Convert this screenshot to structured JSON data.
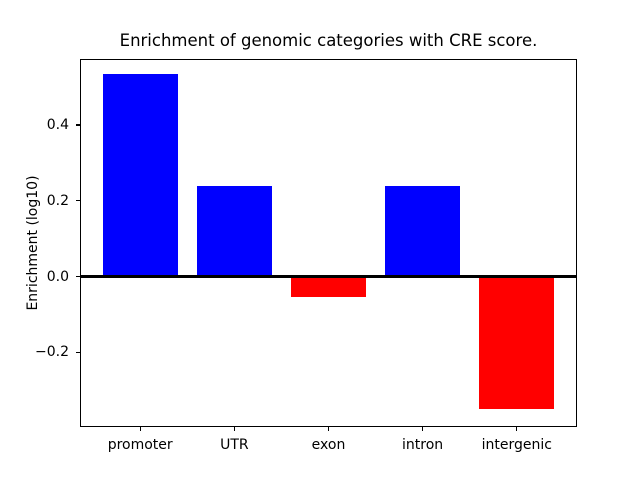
{
  "chart_data": {
    "type": "bar",
    "title": "Enrichment of genomic categories with CRE score.",
    "ylabel": "Enrichment (log10)",
    "xlabel": "",
    "categories": [
      "promoter",
      "UTR",
      "exon",
      "intron",
      "intergenic"
    ],
    "values": [
      0.535,
      0.24,
      -0.055,
      0.24,
      -0.35
    ],
    "bar_colors": [
      "#0000ff",
      "#0000ff",
      "#ff0000",
      "#0000ff",
      "#ff0000"
    ],
    "positive_color": "#0000ff",
    "negative_color": "#ff0000",
    "axis_color": "#000000",
    "background_color": "#ffffff",
    "yticks": [
      0.4,
      0.2,
      0.0,
      -0.2
    ],
    "ytick_labels": [
      "0.4",
      "0.2",
      "0.0",
      "−0.2"
    ],
    "ylim": [
      -0.397,
      0.574
    ],
    "bar_width_fraction": 0.8,
    "zero_line": true,
    "grid": false,
    "legend": "none"
  }
}
